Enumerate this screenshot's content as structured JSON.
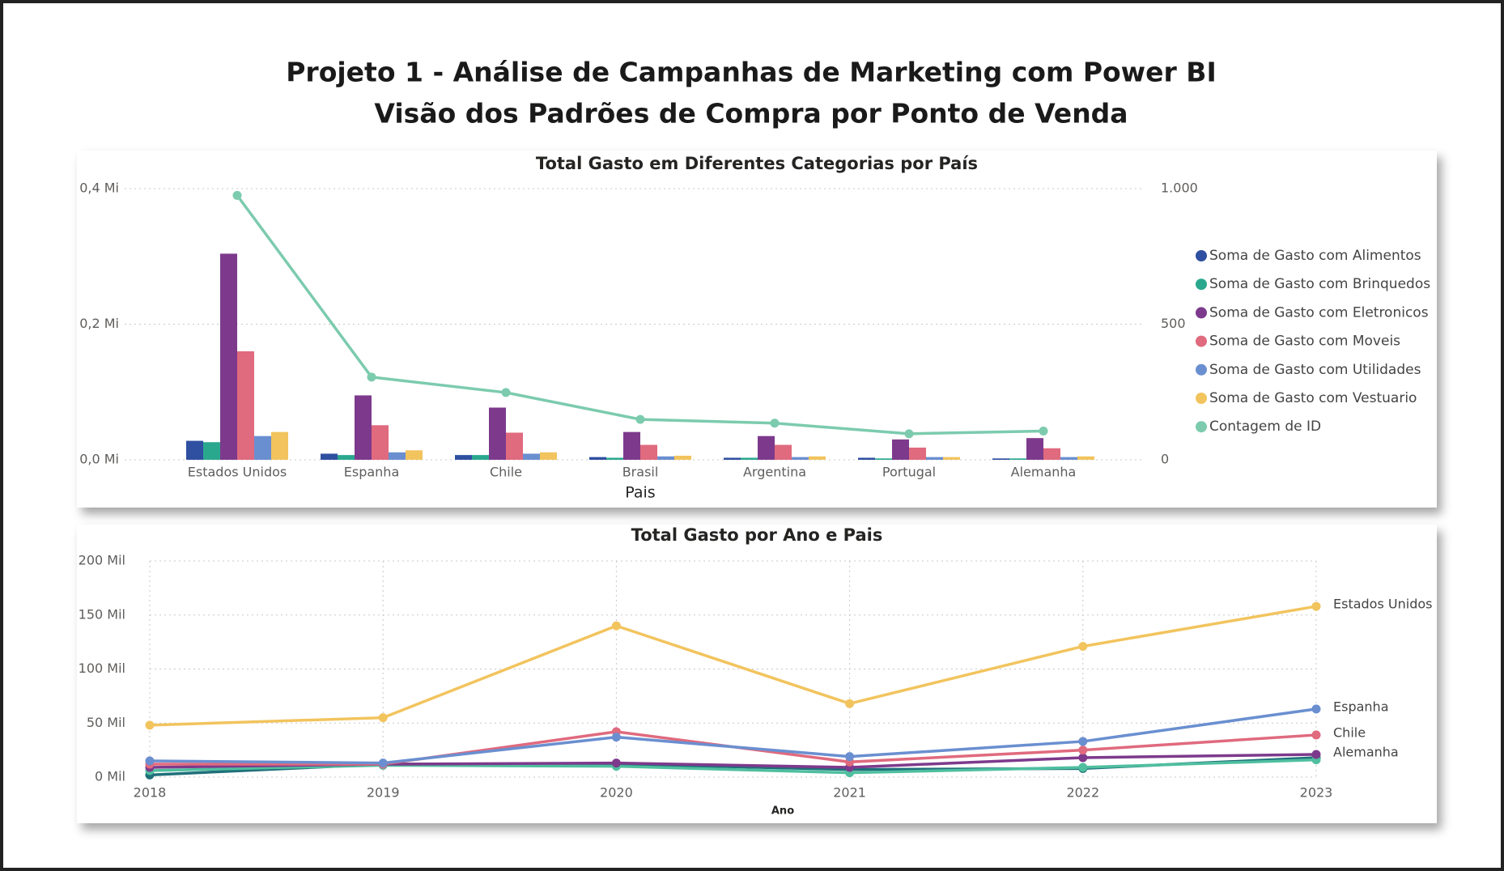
{
  "header": {
    "title": "Projeto 1 - Análise de Campanhas de Marketing com Power BI",
    "subtitle": "Visão dos Padrões de Compra por Ponto de Venda"
  },
  "chart_data": [
    {
      "type": "bar",
      "title": "Total Gasto em Diferentes Categorias por País",
      "x_label": "Pais",
      "categories": [
        "Estados Unidos",
        "Espanha",
        "Chile",
        "Brasil",
        "Argentina",
        "Portugal",
        "Alemanha"
      ],
      "series": [
        {
          "name": "Soma de Gasto com Alimentos",
          "color": "#2f4fa1",
          "values": [
            0.028,
            0.009,
            0.007,
            0.004,
            0.003,
            0.003,
            0.002
          ]
        },
        {
          "name": "Soma de Gasto com Brinquedos",
          "color": "#2aa88e",
          "values": [
            0.026,
            0.007,
            0.007,
            0.003,
            0.003,
            0.002,
            0.002
          ]
        },
        {
          "name": "Soma de Gasto com Eletronicos",
          "color": "#7d3a8c",
          "values": [
            0.304,
            0.095,
            0.077,
            0.041,
            0.035,
            0.03,
            0.032
          ]
        },
        {
          "name": "Soma de Gasto com Moveis",
          "color": "#e06a7e",
          "values": [
            0.16,
            0.051,
            0.04,
            0.022,
            0.022,
            0.018,
            0.017
          ]
        },
        {
          "name": "Soma de Gasto com Utilidades",
          "color": "#6a8fd0",
          "values": [
            0.035,
            0.011,
            0.009,
            0.005,
            0.004,
            0.004,
            0.004
          ]
        },
        {
          "name": "Soma de Gasto com Vestuario",
          "color": "#f2c45e",
          "values": [
            0.041,
            0.014,
            0.011,
            0.006,
            0.005,
            0.004,
            0.005
          ]
        },
        {
          "name": "Contagem de ID",
          "color": "#7ccbae",
          "type": "line",
          "axis": "y2",
          "values": [
            975,
            305,
            248,
            149,
            135,
            96,
            106
          ]
        }
      ],
      "ylim": [
        0,
        0.4
      ],
      "yticks": [
        {
          "value": 0,
          "label": "0,0 Mi"
        },
        {
          "value": 0.2,
          "label": "0,2 Mi"
        },
        {
          "value": 0.4,
          "label": "0,4 Mi"
        }
      ],
      "y2lim": [
        0,
        1000
      ],
      "y2ticks": [
        0,
        500,
        {
          "value": 1000,
          "label": "1.000"
        }
      ],
      "grid": true,
      "legend": "right"
    },
    {
      "type": "line",
      "title": "Total Gasto por Ano e Pais",
      "x_label": "Ano",
      "x": [
        2018,
        2019,
        2020,
        2021,
        2022,
        2023
      ],
      "xlim": [
        2018,
        2023
      ],
      "xticks": [
        2018,
        2019,
        2020,
        2021,
        2022,
        2023
      ],
      "series": [
        {
          "color": "#1f6f7a",
          "values": [
            2,
            12,
            12,
            7,
            8,
            18
          ]
        },
        {
          "color": "#4fbf9f",
          "values": [
            6,
            11,
            10,
            4,
            9,
            16
          ]
        },
        {
          "name": "Alemanha",
          "color": "#7d3a8c",
          "values": [
            9,
            12,
            13,
            9,
            18,
            21
          ]
        },
        {
          "name": "Chile",
          "color": "#e06a7e",
          "values": [
            12,
            12,
            42,
            14,
            25,
            39
          ]
        },
        {
          "name": "Espanha",
          "color": "#6a8fd0",
          "values": [
            15,
            13,
            37,
            19,
            33,
            63
          ]
        },
        {
          "name": "Estados Unidos",
          "color": "#f2c45e",
          "values": [
            48,
            55,
            140,
            68,
            121,
            158
          ]
        }
      ],
      "ylim": [
        0,
        200
      ],
      "yticks": [
        {
          "value": 0,
          "label": "0 Mil"
        },
        {
          "value": 50,
          "label": "50 Mil"
        },
        {
          "value": 100,
          "label": "100 Mil"
        },
        {
          "value": 150,
          "label": "150 Mil"
        },
        {
          "value": 200,
          "label": "200 Mil"
        }
      ],
      "grid": true,
      "legend": "line-end"
    }
  ]
}
